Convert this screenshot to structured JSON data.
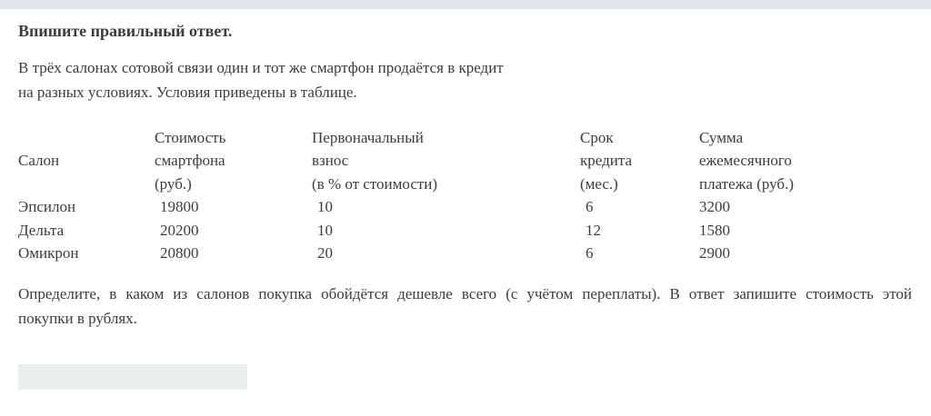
{
  "page": {
    "background_color": "#ffffff",
    "text_color": "#3c3c3c",
    "topbar_color": "#e1e5e7"
  },
  "heading": "Впишите правильный ответ.",
  "intro": {
    "line1": "В трёх салонах сотовой связи один и тот же смартфон продаётся в кредит",
    "line2": "на разных условиях. Условия приведены в таблице."
  },
  "table": {
    "headers": [
      {
        "lines": [
          "",
          "Салон",
          ""
        ]
      },
      {
        "lines": [
          "Стоимость",
          "смартфона",
          "(руб.)"
        ]
      },
      {
        "lines": [
          "Первоначальный",
          "взнос",
          "(в % от стоимости)"
        ]
      },
      {
        "lines": [
          "Срок",
          "кредита",
          "(мес.)"
        ]
      },
      {
        "lines": [
          "Сумма",
          "ежемесячного",
          "платежа (руб.)"
        ]
      }
    ],
    "rows": [
      {
        "salon": "Эпсилон",
        "cost": "19800",
        "down_payment": "10",
        "term": "6",
        "monthly": "3200"
      },
      {
        "salon": "Дельта",
        "cost": "20200",
        "down_payment": "10",
        "term": "12",
        "monthly": "1580"
      },
      {
        "salon": "Омикрон",
        "cost": "20800",
        "down_payment": "20",
        "term": "6",
        "monthly": "2900"
      }
    ]
  },
  "question": {
    "line1": "Определите, в каком из салонов покупка обойдётся дешевле всего (с учётом переплаты). В ответ запишите стоимость этой",
    "line2": "покупки в рублях."
  },
  "answer_input": {
    "value": "",
    "background": "#e9edee"
  }
}
